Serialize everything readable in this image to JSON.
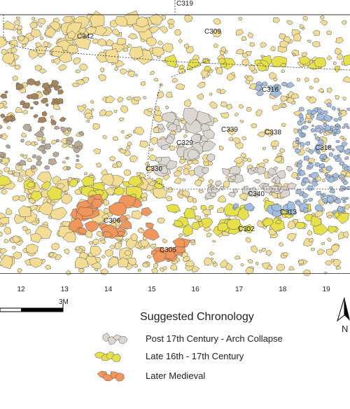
{
  "map": {
    "context_labels": [
      "C319",
      "C342",
      "C309",
      "C316",
      "C339",
      "C338",
      "C329",
      "C318",
      "C330",
      "C340",
      "C313",
      "C306",
      "C302",
      "C305"
    ],
    "grid_labels": [
      "12",
      "13",
      "14",
      "15",
      "16",
      "17",
      "18",
      "19"
    ],
    "scale_label": "3M",
    "north_label": "N",
    "legend": {
      "title": "Suggested Chronology",
      "items": [
        "Post 17th Century - Arch Collapse",
        "Late 16th - 17th Century",
        "Later Medieval"
      ]
    }
  }
}
